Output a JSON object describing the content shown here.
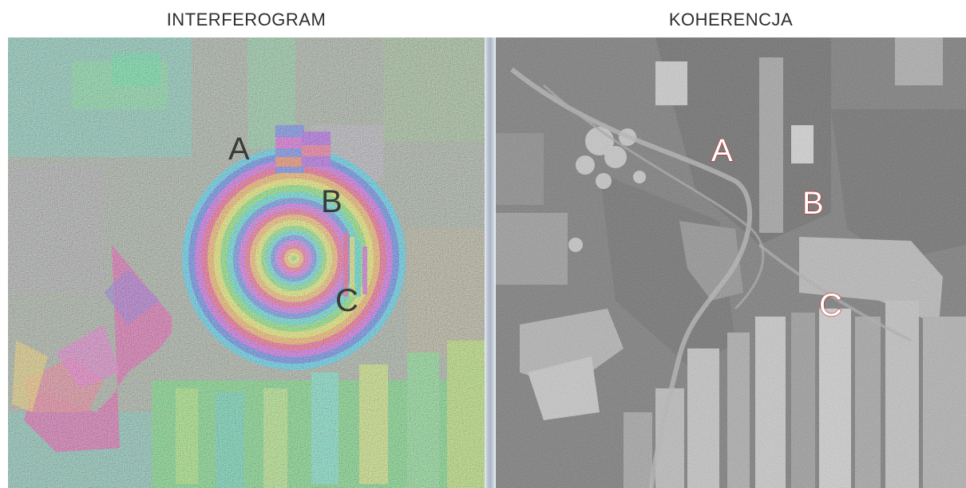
{
  "panels": {
    "left": {
      "title": "INTERFEROGRAM",
      "labels": [
        "A",
        "B",
        "C"
      ]
    },
    "right": {
      "title": "KOHERENCJA",
      "labels": [
        "A",
        "B",
        "C"
      ]
    }
  },
  "colors": {
    "label_dark": "#3a3a3a",
    "label_outline": "#c0282a",
    "label_fill": "#ffffff",
    "divider": "#b8c2d0"
  }
}
